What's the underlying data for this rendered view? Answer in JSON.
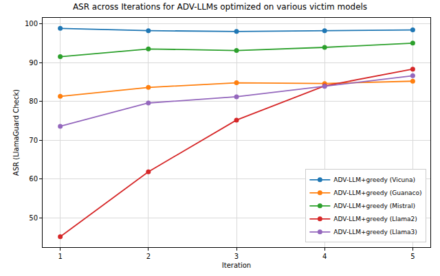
{
  "chart_data": {
    "type": "line",
    "title": "ASR across Iterations for ADV-LLMs optimized on various victim models",
    "x_label": "Iteration",
    "y_label": "ASR (LlamaGuard Check)",
    "x": [
      1,
      2,
      3,
      4,
      5
    ],
    "series": [
      {
        "name": "ADV-LLM+greedy (Vicuna)",
        "color": "#1f77b4",
        "values": [
          98.8,
          98.2,
          98.0,
          98.2,
          98.4
        ]
      },
      {
        "name": "ADV-LLM+greedy (Guanaco)",
        "color": "#ff7f0e",
        "values": [
          81.3,
          83.6,
          84.8,
          84.6,
          85.2
        ]
      },
      {
        "name": "ADV-LLM+greedy (Mistral)",
        "color": "#2ca02c",
        "values": [
          91.5,
          93.5,
          93.1,
          93.9,
          95.0
        ]
      },
      {
        "name": "ADV-LLM+greedy (Llama2)",
        "color": "#d62728",
        "values": [
          45.2,
          61.9,
          75.2,
          84.0,
          88.3
        ]
      },
      {
        "name": "ADV-LLM+greedy (Llama3)",
        "color": "#9467bd",
        "values": [
          73.6,
          79.6,
          81.2,
          83.9,
          86.6
        ]
      }
    ],
    "xlim": [
      0.8,
      5.2
    ],
    "xticks": [
      1,
      2,
      3,
      4,
      5
    ],
    "ylim": [
      42.5,
      101.5
    ],
    "yticks": [
      50,
      60,
      70,
      80,
      90,
      100
    ],
    "grid": true,
    "legend": "lower right",
    "marker": "circle",
    "line_style": "solid"
  }
}
